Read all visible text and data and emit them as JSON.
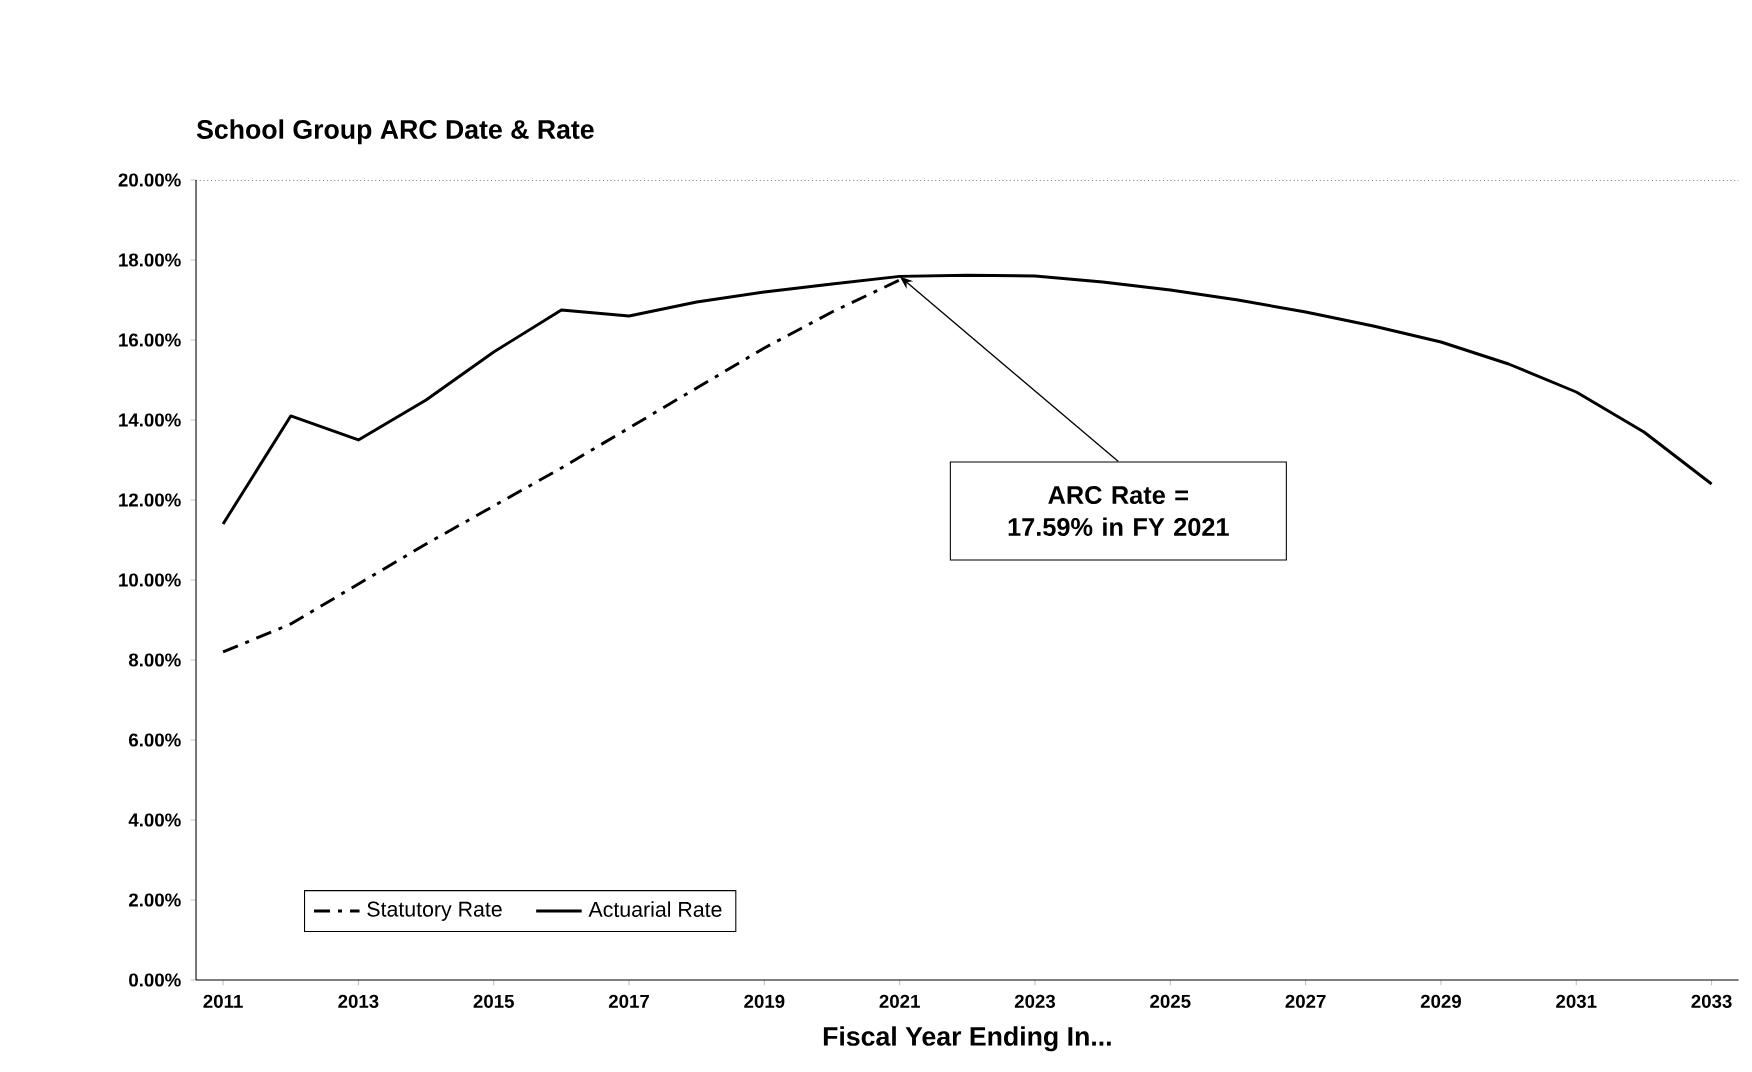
{
  "chart_data": {
    "type": "line",
    "title": "School Group ARC Date & Rate",
    "xlabel": "Fiscal Year Ending In...",
    "x": [
      2011,
      2012,
      2013,
      2014,
      2015,
      2016,
      2017,
      2018,
      2019,
      2020,
      2021,
      2022,
      2023,
      2024,
      2025,
      2026,
      2027,
      2028,
      2029,
      2030,
      2031,
      2032,
      2033
    ],
    "series": [
      {
        "name": "Statutory Rate",
        "color": "#000000",
        "line_style": "dashed",
        "x": [
          2011,
          2012,
          2013,
          2014,
          2015,
          2016,
          2017,
          2018,
          2019,
          2020,
          2021
        ],
        "values": [
          8.2,
          8.9,
          9.9,
          10.9,
          11.85,
          12.8,
          13.8,
          14.8,
          15.8,
          16.7,
          17.5
        ]
      },
      {
        "name": "Actuarial Rate",
        "color": "#000000",
        "line_style": "solid",
        "values": [
          11.4,
          14.1,
          13.5,
          14.5,
          15.7,
          16.75,
          16.6,
          16.95,
          17.2,
          17.4,
          17.59,
          17.62,
          17.6,
          17.45,
          17.25,
          17.0,
          16.7,
          16.35,
          15.95,
          15.4,
          14.7,
          13.7,
          12.4
        ]
      }
    ],
    "xlim": [
      2010.6,
      2033.4
    ],
    "xticks": [
      2011,
      2013,
      2015,
      2017,
      2019,
      2021,
      2023,
      2025,
      2027,
      2029,
      2031,
      2033
    ],
    "ylim": [
      0,
      20
    ],
    "yticks": [
      {
        "value": 0,
        "label": "0.00%"
      },
      {
        "value": 2,
        "label": "2.00%"
      },
      {
        "value": 4,
        "label": "4.00%"
      },
      {
        "value": 6,
        "label": "6.00%"
      },
      {
        "value": 8,
        "label": "8.00%"
      },
      {
        "value": 10,
        "label": "10.00%"
      },
      {
        "value": 12,
        "label": "12.00%"
      },
      {
        "value": 14,
        "label": "14.00%"
      },
      {
        "value": 16,
        "label": "16.00%"
      },
      {
        "value": 18,
        "label": "18.00%"
      },
      {
        "value": 20,
        "label": "20.00%"
      }
    ],
    "annotations": [
      {
        "text": "ARC Rate = 17.59% in FY 2021",
        "x": 2021,
        "y": 17.59
      }
    ],
    "legend": "bottom left",
    "grid": false,
    "marker": "none"
  }
}
